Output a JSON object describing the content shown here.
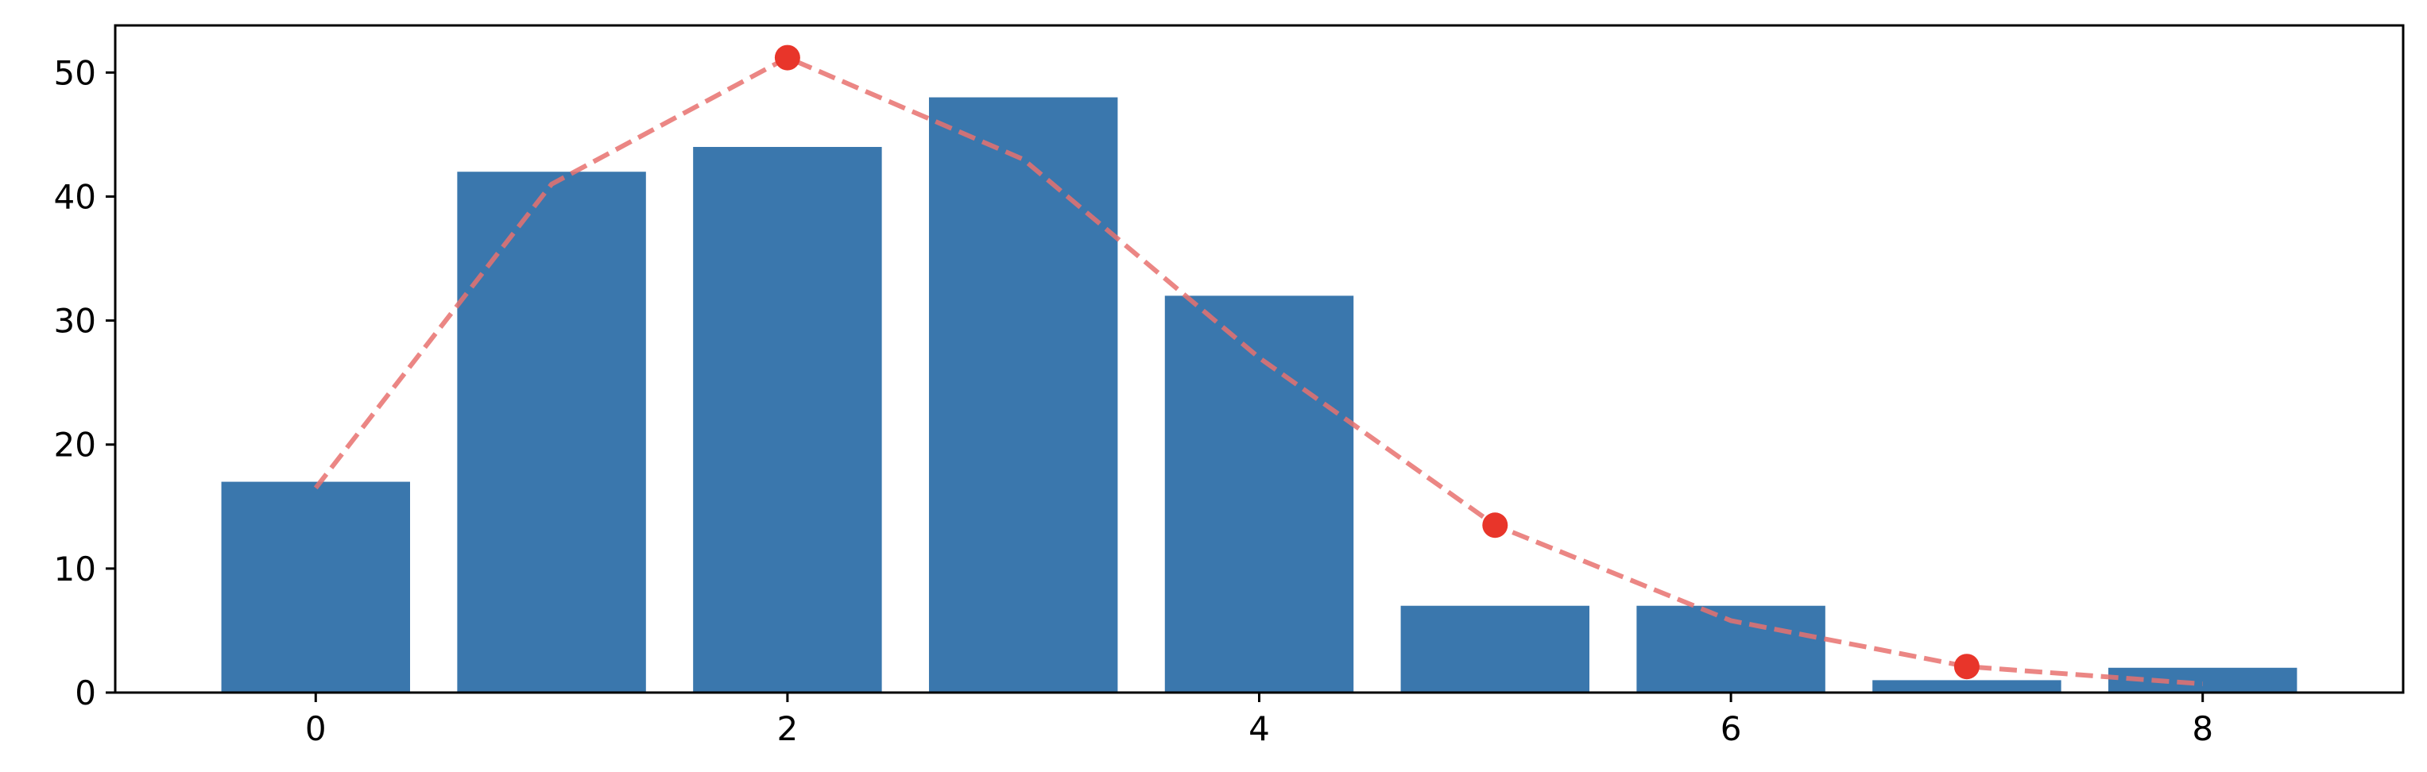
{
  "chart_data": {
    "type": "bar",
    "title": "",
    "xlabel": "",
    "ylabel": "",
    "x": [
      0,
      1,
      2,
      3,
      4,
      5,
      6,
      7,
      8
    ],
    "series": [
      {
        "values": [
          17,
          42,
          44,
          48,
          32,
          7,
          7,
          1,
          2
        ],
        "kind": "bar",
        "color": "#3a77ad"
      },
      {
        "values": [
          16.5,
          41,
          51.2,
          43,
          27,
          13.5,
          5.8,
          2.1,
          0.7
        ],
        "kind": "line",
        "style": "dashed",
        "color": "#e8716e",
        "markers_at": [
          2,
          5,
          7
        ],
        "marker_color": "#e8352a"
      }
    ],
    "xlim": [
      -0.85,
      8.85
    ],
    "ylim": [
      0,
      53.8
    ],
    "xticks": [
      "0",
      "2",
      "4",
      "6",
      "8"
    ],
    "yticks": [
      "0",
      "10",
      "20",
      "30",
      "40",
      "50"
    ],
    "grid": false,
    "legend": "none"
  }
}
